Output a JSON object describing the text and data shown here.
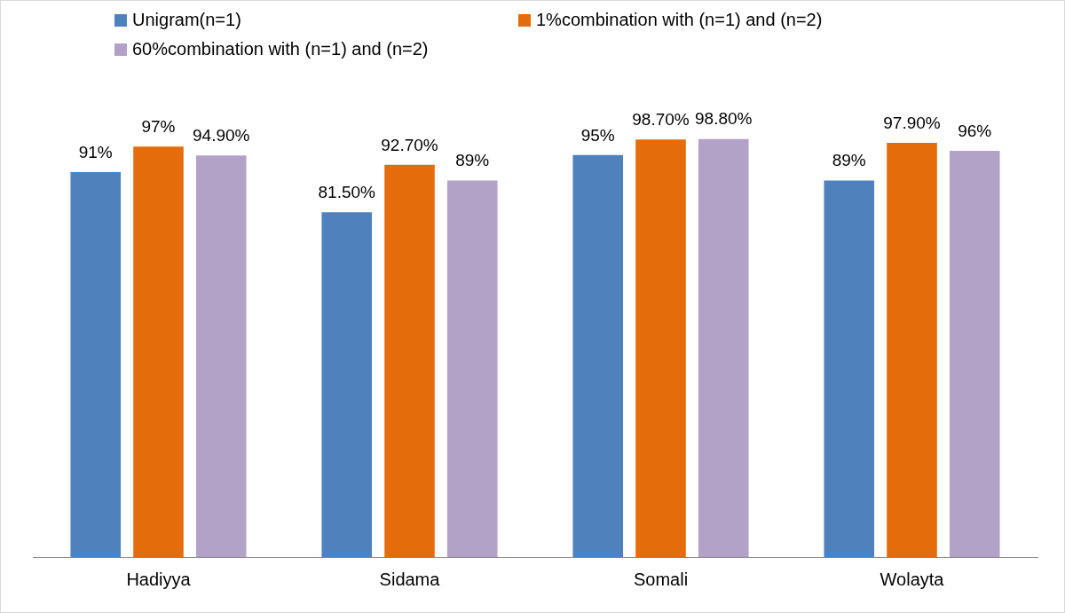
{
  "chart_data": {
    "type": "bar",
    "categories": [
      "Hadiyya",
      "Sidama",
      "Somali",
      "Wolayta"
    ],
    "series": [
      {
        "name": "Unigram(n=1)",
        "color": "#4f81bd",
        "values": [
          91,
          81.5,
          95,
          89
        ],
        "value_labels": [
          "91%",
          "81.50%",
          "95%",
          "89%"
        ]
      },
      {
        "name": "1%combination with (n=1) and (n=2)",
        "color": "#e46c0a",
        "values": [
          97,
          92.7,
          98.7,
          97.9
        ],
        "value_labels": [
          "97%",
          "92.70%",
          "98.70%",
          "97.90%"
        ]
      },
      {
        "name": "60%combination with (n=1) and (n=2)",
        "color": "#b3a2c7",
        "values": [
          94.9,
          89,
          98.8,
          96
        ],
        "value_labels": [
          "94.90%",
          "89%",
          "98.80%",
          "96%"
        ]
      }
    ],
    "legend": "top left",
    "grid": false
  }
}
